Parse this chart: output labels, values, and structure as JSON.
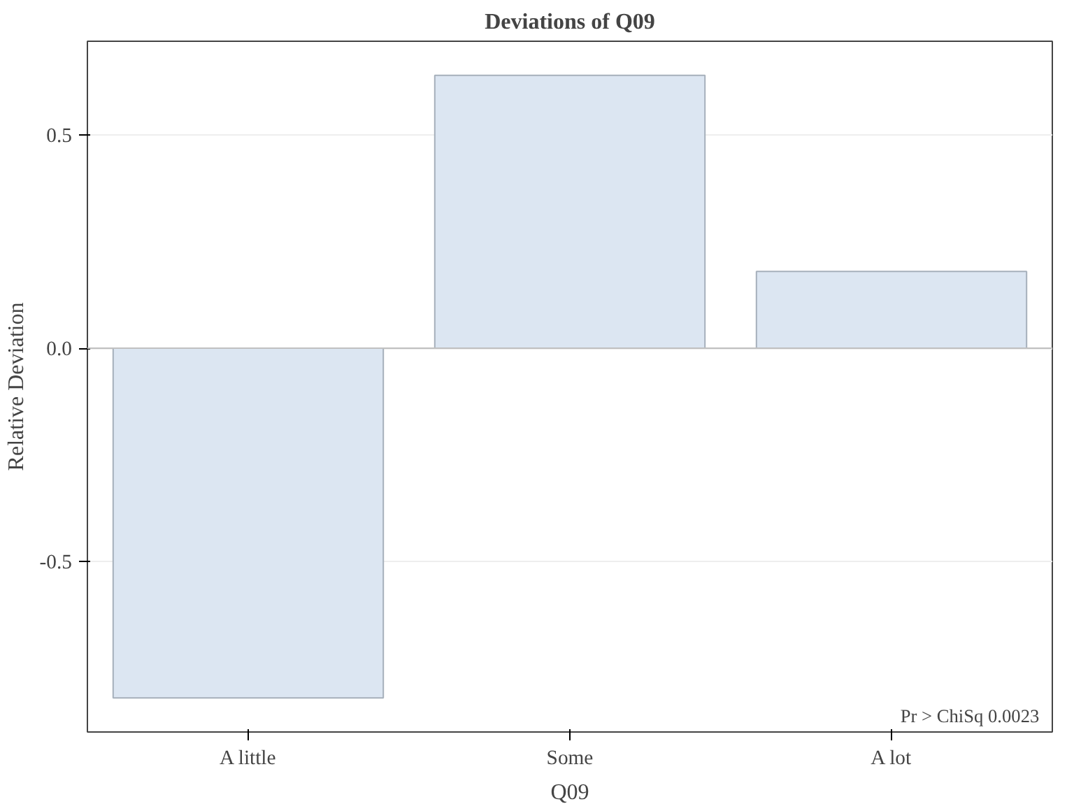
{
  "chart_data": {
    "type": "bar",
    "title": "Deviations of Q09",
    "xlabel": "Q09",
    "ylabel": "Relative Deviation",
    "categories": [
      "A little",
      "Some",
      "A lot"
    ],
    "values": [
      -0.82,
      0.64,
      0.18
    ],
    "color": "#dce6f2",
    "ylim": [
      -0.9,
      0.72
    ],
    "yticks": [
      {
        "value": -0.5,
        "label": "-0.5"
      },
      {
        "value": 0,
        "label": "0.0"
      },
      {
        "value": 0.5,
        "label": "0.5"
      }
    ],
    "grid": "y",
    "ref_lines": [
      {
        "axis": "y",
        "value": 0,
        "color": "#c0c0c0"
      }
    ],
    "annotations": [
      "Pr > ChiSq  0.0023"
    ]
  }
}
